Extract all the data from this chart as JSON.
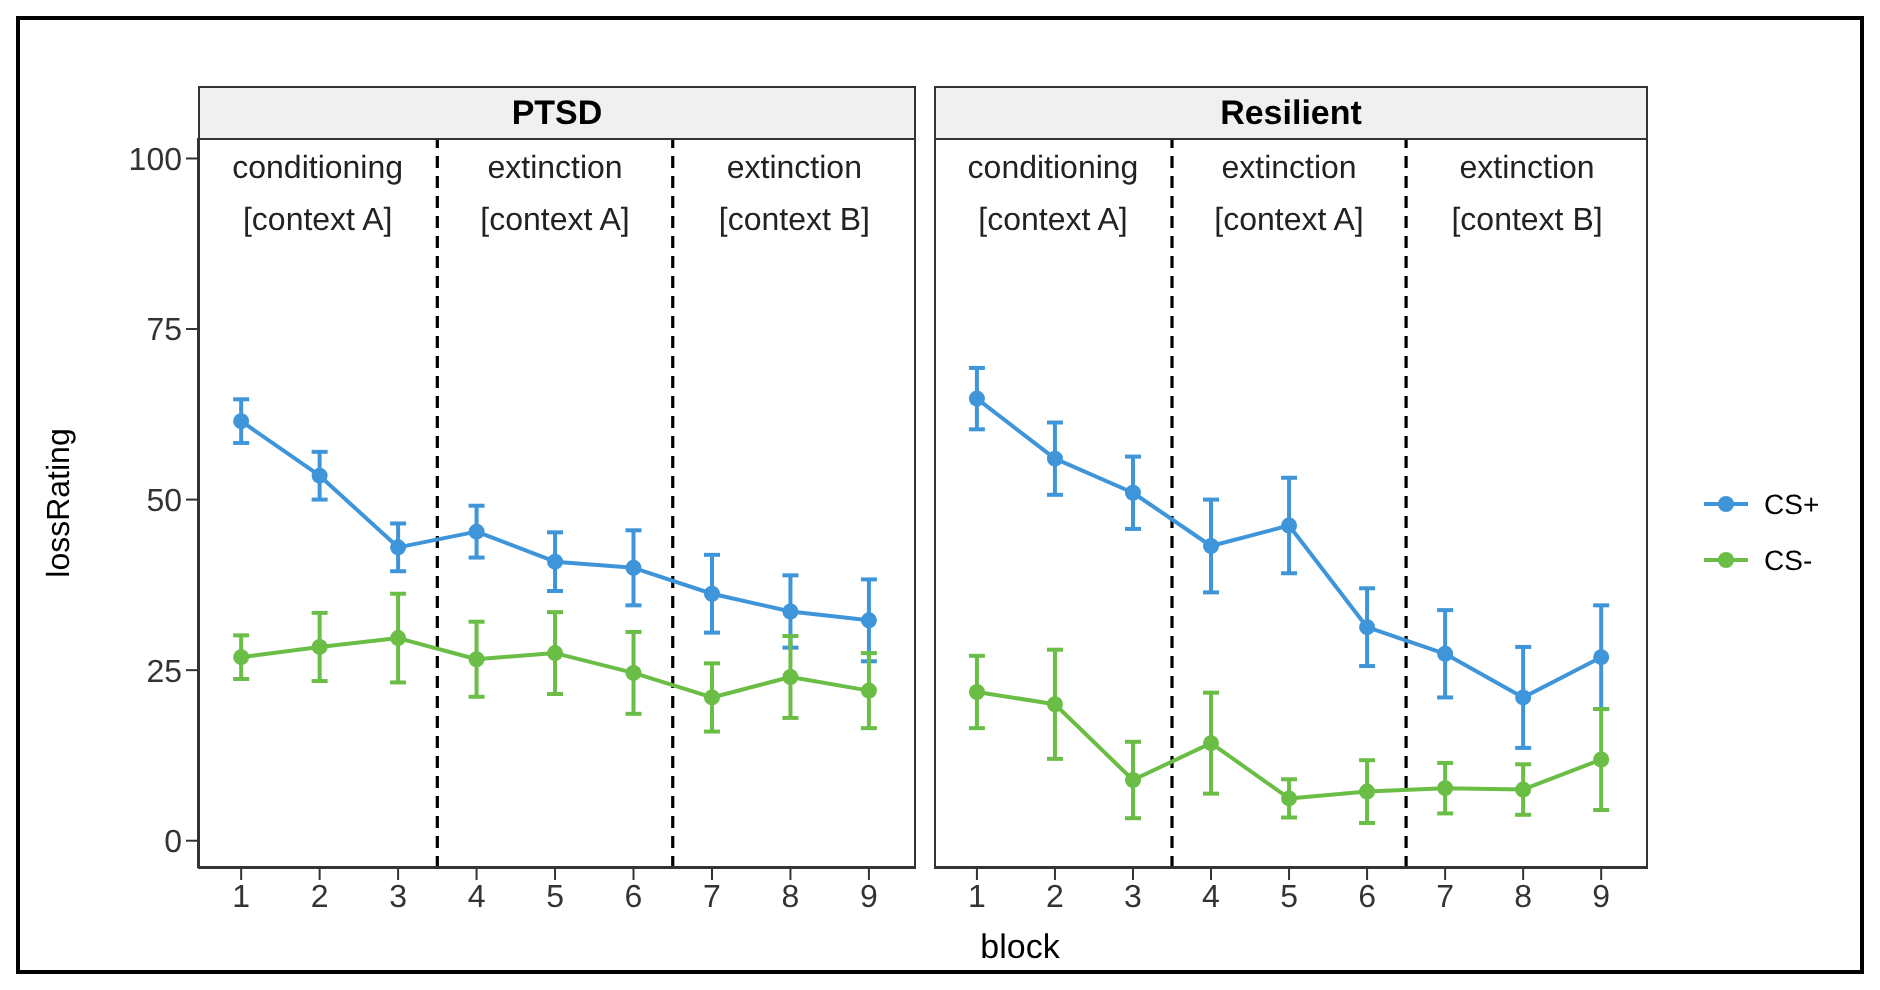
{
  "chart_data": [
    {
      "type": "line",
      "title": "PTSD",
      "xlabel": "block",
      "ylabel": "lossRating",
      "x": [
        1,
        2,
        3,
        4,
        5,
        6,
        7,
        8,
        9
      ],
      "xlim": [
        0.45,
        9.6
      ],
      "xticks": [
        1,
        2,
        3,
        4,
        5,
        6,
        7,
        8,
        9
      ],
      "ylim": [
        -4,
        103
      ],
      "yticks": [
        0,
        25,
        50,
        75,
        100
      ],
      "grid": false,
      "legend": false,
      "marker": "circle",
      "line_style": "solid",
      "series": [
        {
          "color": "#3f95d9",
          "values": [
            61.5,
            53.5,
            43,
            45.3,
            40.9,
            40,
            36.2,
            33.6,
            32.3
          ],
          "errors": [
            3.2,
            3.5,
            3.5,
            3.8,
            4.3,
            5.5,
            5.7,
            5.3,
            6
          ]
        },
        {
          "color": "#6abd45",
          "values": [
            26.9,
            28.4,
            29.7,
            26.6,
            27.5,
            24.6,
            21,
            24,
            22
          ],
          "errors": [
            3.2,
            5,
            6.5,
            5.5,
            6,
            6,
            5,
            6,
            5.5
          ]
        }
      ],
      "ref_lines": [
        {
          "axis": "x",
          "value": 3.5,
          "line_style": "dashed",
          "color": "#000000"
        },
        {
          "axis": "x",
          "value": 6.5,
          "line_style": "dashed",
          "color": "#000000"
        }
      ],
      "annotations": [
        "conditioning\n[context A]",
        "extinction\n[context A]",
        "extinction\n[context B]"
      ]
    },
    {
      "type": "line",
      "title": "Resilient",
      "x": [
        1,
        2,
        3,
        4,
        5,
        6,
        7,
        8,
        9
      ],
      "xlim": [
        0.45,
        9.6
      ],
      "xticks": [
        1,
        2,
        3,
        4,
        5,
        6,
        7,
        8,
        9
      ],
      "ylim": [
        -4,
        103
      ],
      "yticks": [
        0,
        25,
        50,
        75,
        100
      ],
      "tick_labels": "x",
      "grid": false,
      "legend": "right",
      "marker": "circle",
      "line_style": "solid",
      "series": [
        {
          "name": "CS+",
          "color": "#3f95d9",
          "values": [
            64.8,
            56,
            51,
            43.2,
            46.2,
            31.3,
            27.4,
            21,
            26.9
          ],
          "errors": [
            4.5,
            5.3,
            5.3,
            6.8,
            7,
            5.7,
            6.4,
            7.4,
            7.6
          ]
        },
        {
          "name": "CS-",
          "color": "#6abd45",
          "values": [
            21.8,
            20,
            8.9,
            14.3,
            6.2,
            7.2,
            7.7,
            7.5,
            11.9
          ],
          "errors": [
            5.3,
            8,
            5.6,
            7.4,
            2.8,
            4.6,
            3.7,
            3.7,
            7.4
          ]
        }
      ],
      "ref_lines": [
        {
          "axis": "x",
          "value": 3.5,
          "line_style": "dashed",
          "color": "#000000"
        },
        {
          "axis": "x",
          "value": 6.5,
          "line_style": "dashed",
          "color": "#000000"
        }
      ],
      "annotations": [
        "conditioning\n[context A]",
        "extinction\n[context A]",
        "extinction\n[context B]"
      ]
    }
  ]
}
